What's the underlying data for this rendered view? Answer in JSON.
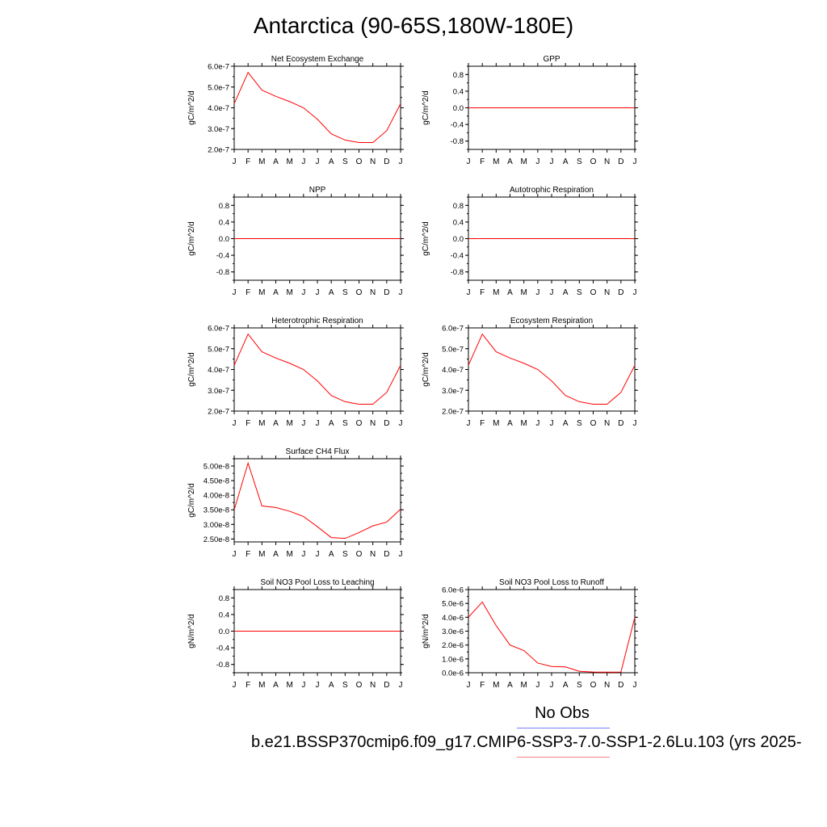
{
  "title": "Antarctica (90-65S,180W-180E)",
  "months": [
    "J",
    "F",
    "M",
    "A",
    "M",
    "J",
    "J",
    "A",
    "S",
    "O",
    "N",
    "D",
    "J"
  ],
  "legend": {
    "obs_label": "No Obs",
    "obs_color": "#7b7bff",
    "run_label": "b.e21.BSSP370cmip6.f09_g17.CMIP6-SSP3-7.0-SSP1-2.6Lu.103 (yrs 2025-",
    "run_color": "#ff8080"
  },
  "line_color": "#ff0000",
  "chart_data": [
    {
      "type": "line",
      "title": "Net Ecosystem Exchange",
      "ylabel": "gC/m^2/d",
      "ylim": [
        2e-07,
        6e-07
      ],
      "yticks": [
        2e-07,
        3e-07,
        4e-07,
        5e-07,
        6e-07
      ],
      "yticklabels": [
        "2.0e-7",
        "3.0e-7",
        "4.0e-7",
        "5.0e-7",
        "6.0e-7"
      ],
      "series": [
        {
          "values": [
            4.2e-07,
            5.7e-07,
            4.85e-07,
            4.55e-07,
            4.3e-07,
            4e-07,
            3.45e-07,
            2.75e-07,
            2.45e-07,
            2.33e-07,
            2.33e-07,
            2.9e-07,
            4.2e-07
          ]
        }
      ]
    },
    {
      "type": "line",
      "title": "GPP",
      "ylabel": "gC/m^2/d",
      "ylim": [
        -1.0,
        1.0
      ],
      "yticks": [
        -0.8,
        -0.4,
        0.0,
        0.4,
        0.8
      ],
      "yticklabels": [
        "-0.8",
        "-0.4",
        "0.0",
        "0.4",
        "0.8"
      ],
      "series": [
        {
          "values": [
            0,
            0,
            0,
            0,
            0,
            0,
            0,
            0,
            0,
            0,
            0,
            0,
            0
          ]
        }
      ]
    },
    {
      "type": "line",
      "title": "NPP",
      "ylabel": "gC/m^2/d",
      "ylim": [
        -1.0,
        1.0
      ],
      "yticks": [
        -0.8,
        -0.4,
        0.0,
        0.4,
        0.8
      ],
      "yticklabels": [
        "-0.8",
        "-0.4",
        "0.0",
        "0.4",
        "0.8"
      ],
      "series": [
        {
          "values": [
            0,
            0,
            0,
            0,
            0,
            0,
            0,
            0,
            0,
            0,
            0,
            0,
            0
          ]
        }
      ]
    },
    {
      "type": "line",
      "title": "Autotrophic Respiration",
      "ylabel": "gC/m^2/d",
      "ylim": [
        -1.0,
        1.0
      ],
      "yticks": [
        -0.8,
        -0.4,
        0.0,
        0.4,
        0.8
      ],
      "yticklabels": [
        "-0.8",
        "-0.4",
        "0.0",
        "0.4",
        "0.8"
      ],
      "series": [
        {
          "values": [
            0,
            0,
            0,
            0,
            0,
            0,
            0,
            0,
            0,
            0,
            0,
            0,
            0
          ]
        }
      ]
    },
    {
      "type": "line",
      "title": "Heterotrophic Respiration",
      "ylabel": "gC/m^2/d",
      "ylim": [
        2e-07,
        6e-07
      ],
      "yticks": [
        2e-07,
        3e-07,
        4e-07,
        5e-07,
        6e-07
      ],
      "yticklabels": [
        "2.0e-7",
        "3.0e-7",
        "4.0e-7",
        "5.0e-7",
        "6.0e-7"
      ],
      "series": [
        {
          "values": [
            4.2e-07,
            5.7e-07,
            4.85e-07,
            4.55e-07,
            4.3e-07,
            4e-07,
            3.45e-07,
            2.75e-07,
            2.45e-07,
            2.33e-07,
            2.33e-07,
            2.9e-07,
            4.2e-07
          ]
        }
      ]
    },
    {
      "type": "line",
      "title": "Ecosystem Respiration",
      "ylabel": "gC/m^2/d",
      "ylim": [
        2e-07,
        6e-07
      ],
      "yticks": [
        2e-07,
        3e-07,
        4e-07,
        5e-07,
        6e-07
      ],
      "yticklabels": [
        "2.0e-7",
        "3.0e-7",
        "4.0e-7",
        "5.0e-7",
        "6.0e-7"
      ],
      "series": [
        {
          "values": [
            4.2e-07,
            5.7e-07,
            4.85e-07,
            4.55e-07,
            4.3e-07,
            4e-07,
            3.45e-07,
            2.75e-07,
            2.45e-07,
            2.33e-07,
            2.33e-07,
            2.9e-07,
            4.2e-07
          ]
        }
      ]
    },
    {
      "type": "line",
      "title": "Surface CH4 Flux",
      "ylabel": "gC/m^2/d",
      "ylim": [
        2.4e-08,
        5.25e-08
      ],
      "yticks": [
        2.5e-08,
        3e-08,
        3.5e-08,
        4e-08,
        4.5e-08,
        5e-08
      ],
      "yticklabels": [
        "2.50e-8",
        "3.00e-8",
        "3.50e-8",
        "4.00e-8",
        "4.50e-8",
        "5.00e-8"
      ],
      "series": [
        {
          "values": [
            3.5e-08,
            5.1e-08,
            3.63e-08,
            3.58e-08,
            3.45e-08,
            3.27e-08,
            2.92e-08,
            2.55e-08,
            2.52e-08,
            2.72e-08,
            2.95e-08,
            3.08e-08,
            3.52e-08
          ]
        }
      ]
    },
    {
      "type": "line",
      "title": "Soil NO3 Pool Loss to Leaching",
      "ylabel": "gN/m^2/d",
      "ylim": [
        -1.0,
        1.0
      ],
      "yticks": [
        -0.8,
        -0.4,
        0.0,
        0.4,
        0.8
      ],
      "yticklabels": [
        "-0.8",
        "-0.4",
        "0.0",
        "0.4",
        "0.8"
      ],
      "series": [
        {
          "values": [
            0,
            0,
            0,
            0,
            0,
            0,
            0,
            0,
            0,
            0,
            0,
            0,
            0
          ]
        }
      ]
    },
    {
      "type": "line",
      "title": "Soil NO3 Pool Loss to Runoff",
      "ylabel": "gN/m^2/d",
      "ylim": [
        0.0,
        6e-06
      ],
      "yticks": [
        0.0,
        1e-06,
        2e-06,
        3e-06,
        4e-06,
        5e-06,
        6e-06
      ],
      "yticklabels": [
        "0.0e-6",
        "1.0e-6",
        "2.0e-6",
        "3.0e-6",
        "4.0e-6",
        "5.0e-6",
        "6.0e-6"
      ],
      "series": [
        {
          "values": [
            4e-06,
            5.1e-06,
            3.4e-06,
            2e-06,
            1.6e-06,
            7e-07,
            4.5e-07,
            4.2e-07,
            1e-07,
            5e-08,
            4e-08,
            5e-08,
            4e-06
          ]
        }
      ]
    }
  ]
}
